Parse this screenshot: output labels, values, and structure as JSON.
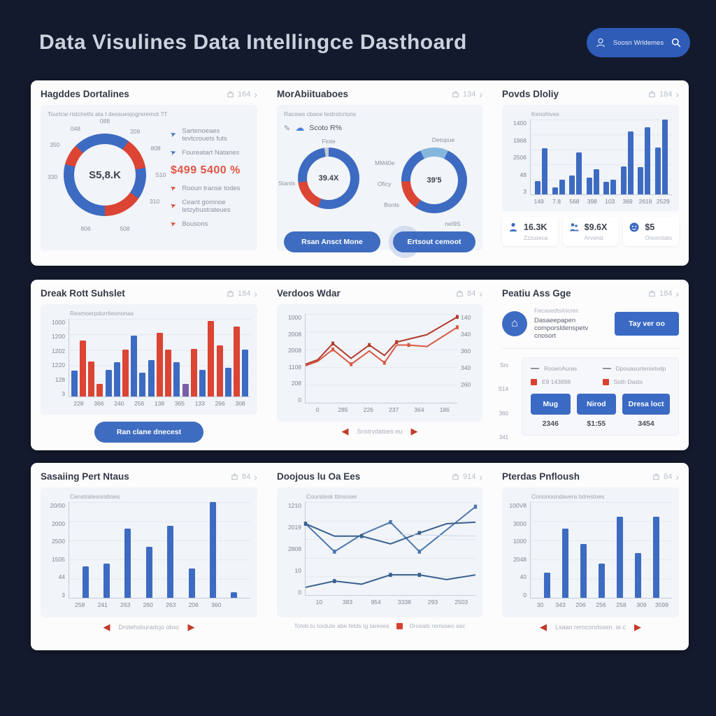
{
  "palette": {
    "blue": "#3d6bc2",
    "red": "#dc4433",
    "purple": "#7b5ea7",
    "lightblue": "#85b6db",
    "gray": "#c3cbd6",
    "darkred": "#b23a2b",
    "midred": "#d95843",
    "lineblue": "#4b76ae",
    "linblue2": "#38608f",
    "lightline": "#c9d7e6"
  },
  "header": {
    "title": "Data Visulines Data Intellingce Dasthoard",
    "search_label": "Soosn Wrldemes"
  },
  "cards": {
    "c1": {
      "title": "Hagddes Dortalines",
      "meta": "164",
      "subtitle": "Tourtcw ristchetts ata t dessuesjogreremot ?T",
      "donut": {
        "center": "S5,8.K",
        "segments": [
          [
            0,
            35,
            "blue"
          ],
          [
            35,
            80,
            "red"
          ],
          [
            80,
            125,
            "blue"
          ],
          [
            125,
            180,
            "red"
          ],
          [
            180,
            285,
            "blue"
          ],
          [
            285,
            315,
            "red"
          ],
          [
            315,
            360,
            "blue"
          ]
        ],
        "labels": [
          "088",
          "209",
          "808",
          "S10",
          "310",
          "508",
          "806",
          "330",
          "350",
          "048"
        ]
      },
      "legend_top": [
        {
          "c": "blue",
          "label": "Sartenoeaes tevtcrouets futs"
        },
        {
          "c": "blue",
          "label": "Foureatart Natanes"
        }
      ],
      "highlight": "$499 5400 %",
      "legend_bottom": [
        {
          "c": "red",
          "label": "Rooun transe todes"
        },
        {
          "c": "red",
          "label": "Ceant gomnoe letzybustrateues"
        },
        {
          "c": "red",
          "label": "Bousons"
        }
      ]
    },
    "c2": {
      "title": "MorAbiituaboes",
      "meta": "134",
      "subtitle": "Racows cbace lestrstcrions",
      "note": "Scoto R%",
      "donut_left": {
        "top": "Ftote",
        "side": "Stants",
        "center": "39.4X",
        "segments": [
          [
            0,
            200,
            "blue"
          ],
          [
            200,
            262,
            "red"
          ],
          [
            262,
            352,
            "blue"
          ],
          [
            352,
            360,
            "gray"
          ]
        ]
      },
      "donut_right": {
        "top": "Detopue",
        "center": "39'5",
        "labels": [
          "MM40e",
          "Oficy",
          "Bonts",
          "neI9S"
        ],
        "segments": [
          [
            0,
            25,
            "lightblue"
          ],
          [
            25,
            215,
            "blue"
          ],
          [
            215,
            268,
            "red"
          ],
          [
            268,
            335,
            "blue"
          ],
          [
            335,
            360,
            "lightblue"
          ]
        ]
      },
      "buttons": [
        "Rsan Ansct Mone",
        "Ertsout cemoot"
      ]
    },
    "c3": {
      "title": "Povds Dloliy",
      "meta": "184",
      "chart": {
        "type": "bar",
        "label": "Kenohives",
        "yticks": [
          "1400",
          "1968",
          "2506",
          "48",
          "3"
        ],
        "xticks": [
          "149",
          "7.8",
          "568",
          "398",
          "103",
          "369",
          "2618",
          "2529"
        ],
        "values": [
          [
            0.18,
            0.62
          ],
          [
            0.09,
            0.2
          ],
          [
            0.25,
            0.56
          ],
          [
            0.22,
            0.34
          ],
          [
            0.17,
            0.2
          ],
          [
            0.37,
            0.84
          ],
          [
            0.36,
            0.9
          ],
          [
            0.63,
            1.0
          ]
        ],
        "color": "blue"
      },
      "stats": [
        {
          "value": "16.3K",
          "label": "Zzzuseca"
        },
        {
          "value": "$9.6X",
          "label": "Arvonst"
        },
        {
          "value": "$5",
          "label": "Oncerstats"
        }
      ]
    },
    "c4": {
      "title": "Dreak Rott Suhslet",
      "meta": "184",
      "chart": {
        "type": "bar",
        "label": "Resmoerpdurrtieononas",
        "yticks": [
          "1000",
          "1200",
          "1202",
          "1220",
          "128",
          "3"
        ],
        "xticks": [
          "228",
          "366",
          "240",
          "256",
          "138",
          "365",
          "133",
          "266",
          "308"
        ],
        "values": [
          {
            "h": 0.33,
            "c": "blue"
          },
          {
            "h": 0.72,
            "c": "red"
          },
          {
            "h": 0.45,
            "c": "red"
          },
          {
            "h": 0.16,
            "c": "red"
          },
          {
            "h": 0.34,
            "c": "blue"
          },
          {
            "h": 0.44,
            "c": "blue"
          },
          {
            "h": 0.6,
            "c": "red"
          },
          {
            "h": 0.78,
            "c": "blue"
          },
          {
            "h": 0.31,
            "c": "blue"
          },
          {
            "h": 0.47,
            "c": "blue"
          },
          {
            "h": 0.82,
            "c": "red"
          },
          {
            "h": 0.6,
            "c": "red"
          },
          {
            "h": 0.44,
            "c": "blue"
          },
          {
            "h": 0.16,
            "c": "purple"
          },
          {
            "h": 0.61,
            "c": "red"
          },
          {
            "h": 0.34,
            "c": "blue"
          },
          {
            "h": 0.97,
            "c": "red"
          },
          {
            "h": 0.66,
            "c": "red"
          },
          {
            "h": 0.37,
            "c": "blue"
          },
          {
            "h": 0.9,
            "c": "red"
          },
          {
            "h": 0.6,
            "c": "blue"
          }
        ]
      },
      "button": "Ran clane dnecest"
    },
    "c5": {
      "title": "Verdoos Wdar",
      "meta": "84",
      "chart": {
        "type": "line",
        "yticks_left": [
          "1000",
          "2008",
          "2008",
          "1108",
          "208",
          "0"
        ],
        "yticks_right": [
          "140",
          "340",
          "360",
          "340",
          "260"
        ],
        "xticks": [
          "0",
          "285",
          "226",
          "237",
          "364",
          "186"
        ],
        "series": [
          {
            "color": "darkred",
            "w": 2,
            "points": [
              [
                0,
                34
              ],
              [
                8,
                31
              ],
              [
                18,
                20
              ],
              [
                30,
                30
              ],
              [
                42,
                21
              ],
              [
                52,
                28
              ],
              [
                60,
                19
              ],
              [
                68,
                17
              ],
              [
                80,
                14
              ],
              [
                100,
                2
              ]
            ],
            "markers": [
              [
                18,
                20
              ],
              [
                42,
                21
              ],
              [
                60,
                19
              ],
              [
                100,
                2
              ]
            ]
          },
          {
            "color": "midred",
            "w": 2,
            "points": [
              [
                0,
                35
              ],
              [
                8,
                32
              ],
              [
                18,
                24
              ],
              [
                30,
                34
              ],
              [
                42,
                25
              ],
              [
                52,
                33
              ],
              [
                60,
                21
              ],
              [
                68,
                21
              ],
              [
                80,
                22
              ],
              [
                100,
                9
              ]
            ],
            "markers": [
              [
                18,
                24
              ],
              [
                30,
                34
              ],
              [
                52,
                33
              ],
              [
                68,
                21
              ],
              [
                100,
                9
              ]
            ]
          }
        ]
      },
      "pager": "Snstrvdatoes eu"
    },
    "c6": {
      "title": "Peatiu Ass Gge",
      "meta": "184",
      "note_label": "Fecasedtsinicrec",
      "note_text": "Dasaeepapen comporsldenspetv cnosort",
      "note_button": "Tay ver oo",
      "side_labels": [
        "Srs",
        "S14",
        "360",
        "341"
      ],
      "legend": [
        {
          "t": "dash",
          "label": "RooenAuras"
        },
        {
          "t": "dash",
          "label": "Dpouasurtersetvdp"
        },
        {
          "t": "square",
          "label": "E9 143898"
        },
        {
          "t": "square",
          "label": "Soth Dasts"
        }
      ],
      "buttons": [
        {
          "label": "Mug",
          "value": "2346"
        },
        {
          "label": "Nirod",
          "value": "$1:55"
        },
        {
          "label": "Dresa loct",
          "value": "3454"
        }
      ]
    },
    "c7": {
      "title": "Sasaiing Pert Ntaus",
      "meta": "84",
      "chart": {
        "type": "bar",
        "label": "Censtratesorsboes",
        "yticks": [
          "20/00",
          "2000",
          "2500",
          "1505",
          "44",
          "3"
        ],
        "xticks": [
          "258",
          "241",
          "263",
          "260",
          "263",
          "206",
          "360",
          ""
        ],
        "values": [
          0.33,
          0.36,
          0.72,
          0.53,
          0.75,
          0.31,
          1.0,
          0.06
        ],
        "color": "blue"
      },
      "pager": "Drstehsburadcjo obxc"
    },
    "c8": {
      "title": "Doojous lu Oa Ees",
      "meta": "914",
      "chart": {
        "type": "line",
        "label": "Courstesk ttinsoser",
        "yticks": [
          "1210",
          "2019",
          "2808",
          "10",
          "0"
        ],
        "xticks": [
          "10",
          "383",
          "954",
          "3338",
          "293",
          "2503"
        ],
        "series": [
          {
            "color": "lineblue",
            "w": 2,
            "points": [
              [
                0,
                14
              ],
              [
                17,
                32
              ],
              [
                33,
                21
              ],
              [
                50,
                13
              ],
              [
                67,
                32
              ],
              [
                100,
                3
              ]
            ],
            "markers": [
              [
                17,
                32
              ],
              [
                50,
                13
              ],
              [
                67,
                32
              ],
              [
                100,
                3
              ]
            ]
          },
          {
            "color": "linblue2",
            "w": 2,
            "points": [
              [
                0,
                14
              ],
              [
                17,
                22
              ],
              [
                33,
                22
              ],
              [
                50,
                27
              ],
              [
                67,
                20
              ],
              [
                83,
                14
              ],
              [
                100,
                13
              ]
            ],
            "markers": [
              [
                0,
                14
              ],
              [
                33,
                22
              ],
              [
                67,
                20
              ]
            ]
          },
          {
            "color": "linblue2",
            "w": 2,
            "points": [
              [
                0,
                55
              ],
              [
                17,
                51
              ],
              [
                33,
                53
              ],
              [
                50,
                47
              ],
              [
                67,
                47
              ],
              [
                83,
                50
              ],
              [
                100,
                47
              ]
            ],
            "markers": [
              [
                17,
                51
              ],
              [
                50,
                47
              ],
              [
                67,
                47
              ]
            ]
          },
          {
            "color": "lightline",
            "w": 1,
            "points": [
              [
                55,
                21
              ],
              [
                100,
                22
              ]
            ],
            "markers": []
          }
        ]
      },
      "legend_left": "Toteb to tordute abe fetds tg tareses",
      "legend_right": "Drceats remsseo asc"
    },
    "c9": {
      "title": "Pterdas Pnfloush",
      "meta": "84",
      "chart": {
        "type": "bar",
        "label": "Cononoondavera tstrestoes",
        "yticks": [
          "100V8",
          "3000",
          "1000",
          "2048",
          "40",
          "0"
        ],
        "xticks": [
          "30",
          "343",
          "206",
          "256",
          "258",
          "309",
          "3599"
        ],
        "values": [
          0.26,
          0.72,
          0.56,
          0.36,
          0.85,
          0.47,
          0.85
        ],
        "color": "blue"
      },
      "pager": "Lsaan rerocondssen. ar.c"
    }
  }
}
